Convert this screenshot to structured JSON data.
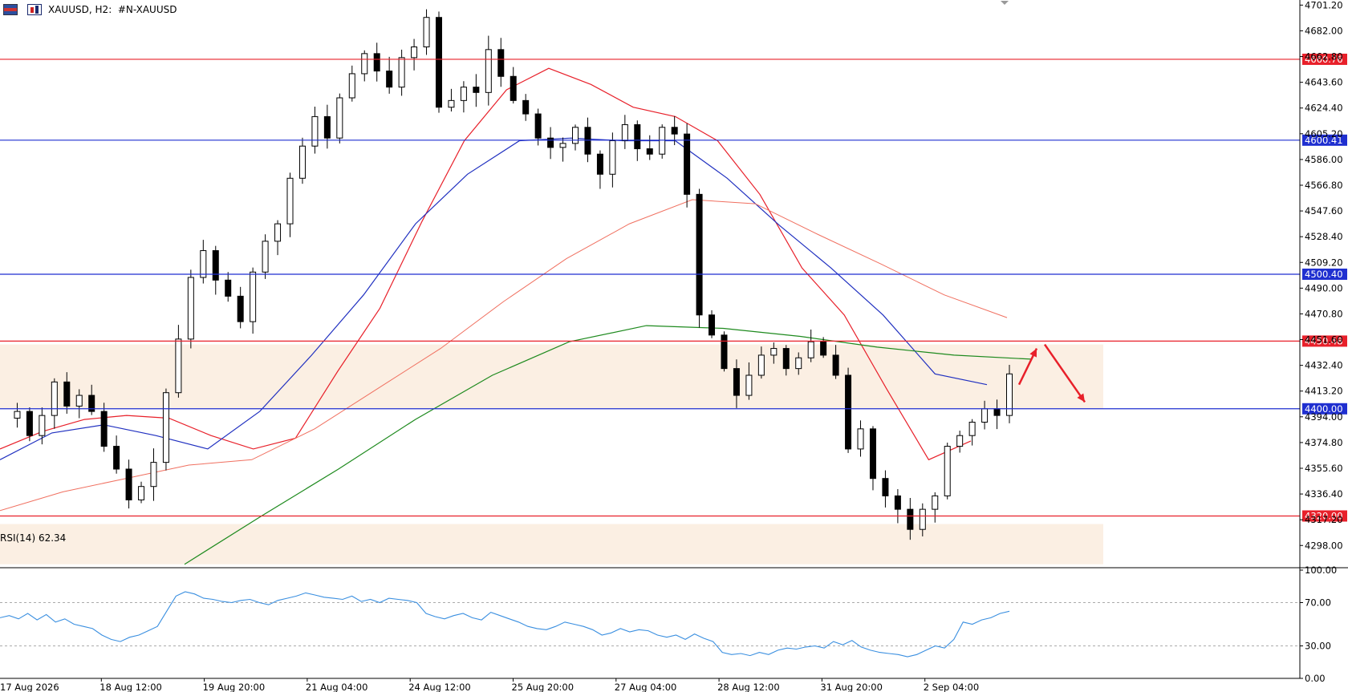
{
  "header": {
    "symbol": "XAUUSD",
    "timeframe": "H2",
    "account_symbol": "#N-XAUUSD",
    "separator": ",",
    "icon_left": "menu-flag-icon",
    "icon_right": "chart-type-icon"
  },
  "chart_data": [
    {
      "type": "candlestick",
      "symbol": "XAUUSD",
      "ylim": [
        4282,
        4705
      ],
      "y_ticks": [
        "4701.20",
        "4682.00",
        "4662.80",
        "4643.60",
        "4624.40",
        "4605.20",
        "4586.00",
        "4566.80",
        "4547.60",
        "4528.40",
        "4509.20",
        "4490.00",
        "4470.80",
        "4451.60",
        "4432.40",
        "4413.20",
        "4394.00",
        "4374.80",
        "4355.60",
        "4336.40",
        "4317.20",
        "4298.00"
      ],
      "x_ticks": [
        "17 Aug 2026",
        "18 Aug 12:00",
        "19 Aug 20:00",
        "21 Aug 04:00",
        "24 Aug 12:00",
        "25 Aug 20:00",
        "27 Aug 04:00",
        "28 Aug 12:00",
        "31 Aug 20:00",
        "2 Sep 04:00"
      ],
      "horizontal_levels": [
        {
          "value": 4660.76,
          "label": "4660.76",
          "color": "#e8202a"
        },
        {
          "value": 4600.41,
          "label": "4600.41",
          "color": "#1f2fd0"
        },
        {
          "value": 4500.4,
          "label": "4500.40",
          "color": "#1f2fd0"
        },
        {
          "value": 4450.48,
          "label": "4450.48",
          "color": "#e8202a"
        },
        {
          "value": 4400.0,
          "label": "4400.00",
          "color": "#1f2fd0"
        },
        {
          "value": 4320.0,
          "label": "4320.00",
          "color": "#e8202a"
        }
      ],
      "zones": [
        {
          "from": 4400,
          "to": 4448,
          "color": "#fbefe3"
        },
        {
          "from": 4284,
          "to": 4314,
          "color": "#fbefe3"
        }
      ],
      "price_path": [
        4393,
        4398,
        4380,
        4395,
        4420,
        4402,
        4410,
        4398,
        4372,
        4355,
        4332,
        4342,
        4360,
        4412,
        4452,
        4498,
        4518,
        4496,
        4484,
        4465,
        4502,
        4525,
        4538,
        4572,
        4596,
        4618,
        4602,
        4632,
        4650,
        4665,
        4652,
        4640,
        4662,
        4670,
        4692,
        4625,
        4630,
        4640,
        4636,
        4668,
        4648,
        4630,
        4620,
        4602,
        4595,
        4598,
        4610,
        4590,
        4575,
        4600,
        4612,
        4594,
        4590,
        4610,
        4605,
        4560,
        4470,
        4455,
        4430,
        4410,
        4425,
        4440,
        4445,
        4430,
        4438,
        4450,
        4440,
        4425,
        4370,
        4385,
        4348,
        4335,
        4325,
        4310,
        4325,
        4335,
        4372,
        4380,
        4390,
        4400,
        4395,
        4426
      ],
      "moving_averages": [
        {
          "name": "",
          "color": "#e8202a",
          "values": [
            4370,
            4383,
            4392,
            4395,
            4393,
            4380,
            4370,
            4378,
            4428,
            4475,
            4540,
            4600,
            4638,
            4654,
            4642,
            4625,
            4618,
            4600,
            4560,
            4505,
            4470,
            4415,
            4362,
            4376
          ]
        },
        {
          "name": "",
          "color": "#2030c0",
          "values": [
            4362,
            4382,
            4388,
            4380,
            4370,
            4398,
            4440,
            4485,
            4538,
            4575,
            4600,
            4602,
            4600,
            4600,
            4572,
            4537,
            4505,
            4470,
            4426,
            4418
          ]
        },
        {
          "name": "",
          "color": "#f07060",
          "values": [
            4324,
            4338,
            4348,
            4358,
            4362,
            4385,
            4415,
            4445,
            4480,
            4512,
            4538,
            4556,
            4553,
            4530,
            4508,
            4485,
            4468
          ]
        },
        {
          "name": "",
          "color": "#1e8a1e",
          "values": [
            4284,
            4320,
            4355,
            4392,
            4425,
            4450,
            4462,
            4460,
            4454,
            4446,
            4440,
            4437
          ]
        }
      ],
      "arrows": [
        {
          "direction": "up",
          "color": "#e8202a",
          "from": [
            4418,
            4422
          ],
          "to": [
            4445,
            4448
          ]
        },
        {
          "direction": "down",
          "color": "#e8202a",
          "from": [
            4448,
            4448
          ],
          "to": [
            4405,
            4405
          ]
        }
      ]
    },
    {
      "type": "line",
      "title": "RSI(14) 62.34",
      "ylim": [
        0,
        100
      ],
      "y_ticks": [
        "100.00",
        "70.00",
        "30.00",
        "0.00"
      ],
      "levels": [
        70,
        30
      ],
      "color": "#3a8fe0",
      "values": [
        56,
        58,
        55,
        60,
        54,
        59,
        52,
        55,
        50,
        48,
        46,
        40,
        36,
        34,
        38,
        40,
        44,
        48,
        62,
        76,
        80,
        78,
        74,
        73,
        71,
        70,
        72,
        73,
        70,
        68,
        72,
        74,
        76,
        79,
        77,
        75,
        74,
        73,
        76,
        71,
        73,
        70,
        74,
        73,
        72,
        70,
        60,
        57,
        55,
        58,
        60,
        56,
        54,
        61,
        58,
        55,
        52,
        48,
        46,
        45,
        48,
        52,
        50,
        48,
        45,
        40,
        42,
        46,
        43,
        45,
        44,
        40,
        38,
        40,
        36,
        41,
        37,
        34,
        24,
        22,
        23,
        21,
        24,
        22,
        26,
        28,
        27,
        29,
        30,
        28,
        34,
        31,
        35,
        29,
        26,
        24,
        23,
        22,
        20,
        22,
        26,
        30,
        28,
        36,
        52,
        50,
        54,
        56,
        60,
        62
      ]
    }
  ]
}
